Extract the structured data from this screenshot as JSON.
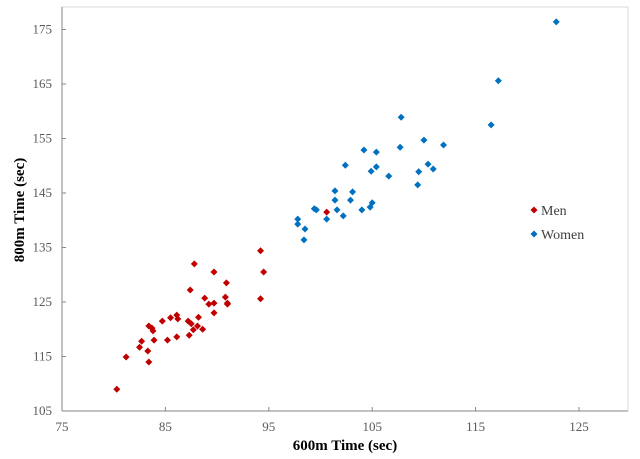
{
  "chart_data": {
    "type": "scatter",
    "title": "",
    "xlabel": "600m Time (sec)",
    "ylabel": "800m Time (sec)",
    "xlim": [
      75,
      130
    ],
    "ylim": [
      105,
      180
    ],
    "x_ticks": [
      75,
      85,
      95,
      105,
      115,
      125
    ],
    "y_ticks": [
      105,
      115,
      125,
      135,
      145,
      155,
      165,
      175
    ],
    "grid": false,
    "legend_position": "right-inside",
    "series": [
      {
        "name": "Men",
        "color": "#C00000",
        "marker": "diamond",
        "points": [
          [
            80.3,
            109.0
          ],
          [
            81.2,
            114.9
          ],
          [
            83.4,
            114.0
          ],
          [
            83.3,
            116.0
          ],
          [
            82.5,
            116.7
          ],
          [
            82.7,
            117.8
          ],
          [
            83.9,
            118.0
          ],
          [
            83.4,
            120.6
          ],
          [
            83.7,
            120.2
          ],
          [
            83.8,
            119.7
          ],
          [
            84.7,
            121.5
          ],
          [
            85.2,
            118.0
          ],
          [
            85.5,
            122.1
          ],
          [
            86.1,
            122.6
          ],
          [
            86.2,
            121.9
          ],
          [
            86.1,
            118.6
          ],
          [
            87.2,
            121.5
          ],
          [
            87.5,
            121.0
          ],
          [
            87.3,
            118.9
          ],
          [
            87.7,
            119.9
          ],
          [
            88.2,
            122.2
          ],
          [
            88.1,
            120.6
          ],
          [
            88.6,
            120.0
          ],
          [
            89.7,
            123.0
          ],
          [
            89.2,
            124.6
          ],
          [
            89.7,
            124.8
          ],
          [
            87.4,
            127.2
          ],
          [
            87.8,
            132.0
          ],
          [
            88.8,
            125.7
          ],
          [
            89.7,
            130.5
          ],
          [
            90.9,
            128.5
          ],
          [
            90.8,
            125.9
          ],
          [
            91.0,
            124.8
          ],
          [
            91.0,
            124.6
          ],
          [
            94.2,
            134.4
          ],
          [
            94.5,
            130.5
          ],
          [
            94.2,
            125.6
          ],
          [
            100.6,
            141.5
          ]
        ]
      },
      {
        "name": "Women",
        "color": "#0070C0",
        "marker": "diamond",
        "points": [
          [
            107.8,
            158.9
          ],
          [
            110.0,
            154.7
          ],
          [
            111.9,
            153.8
          ],
          [
            107.7,
            153.4
          ],
          [
            104.2,
            152.9
          ],
          [
            105.4,
            152.5
          ],
          [
            102.4,
            150.1
          ],
          [
            110.4,
            150.3
          ],
          [
            110.9,
            149.4
          ],
          [
            109.5,
            148.9
          ],
          [
            105.4,
            149.8
          ],
          [
            104.9,
            149.0
          ],
          [
            106.6,
            148.1
          ],
          [
            109.4,
            146.5
          ],
          [
            101.4,
            145.4
          ],
          [
            103.1,
            145.2
          ],
          [
            101.4,
            143.7
          ],
          [
            102.9,
            143.7
          ],
          [
            105.0,
            143.2
          ],
          [
            104.8,
            142.4
          ],
          [
            99.4,
            142.1
          ],
          [
            99.6,
            141.9
          ],
          [
            101.6,
            141.9
          ],
          [
            104.0,
            141.9
          ],
          [
            102.2,
            140.8
          ],
          [
            100.6,
            140.2
          ],
          [
            97.8,
            140.2
          ],
          [
            97.8,
            139.3
          ],
          [
            98.5,
            138.4
          ],
          [
            98.4,
            136.4
          ],
          [
            122.8,
            176.4
          ],
          [
            117.2,
            165.6
          ],
          [
            116.5,
            157.5
          ]
        ]
      }
    ]
  },
  "legend": {
    "items": [
      {
        "label": "Men",
        "color": "#C00000"
      },
      {
        "label": "Women",
        "color": "#0070C0"
      }
    ]
  },
  "axes": {
    "x_title": "600m Time (sec)",
    "y_title": "800m Time (sec)",
    "axis_color": "#868686",
    "tick_label_color": "#595959"
  }
}
